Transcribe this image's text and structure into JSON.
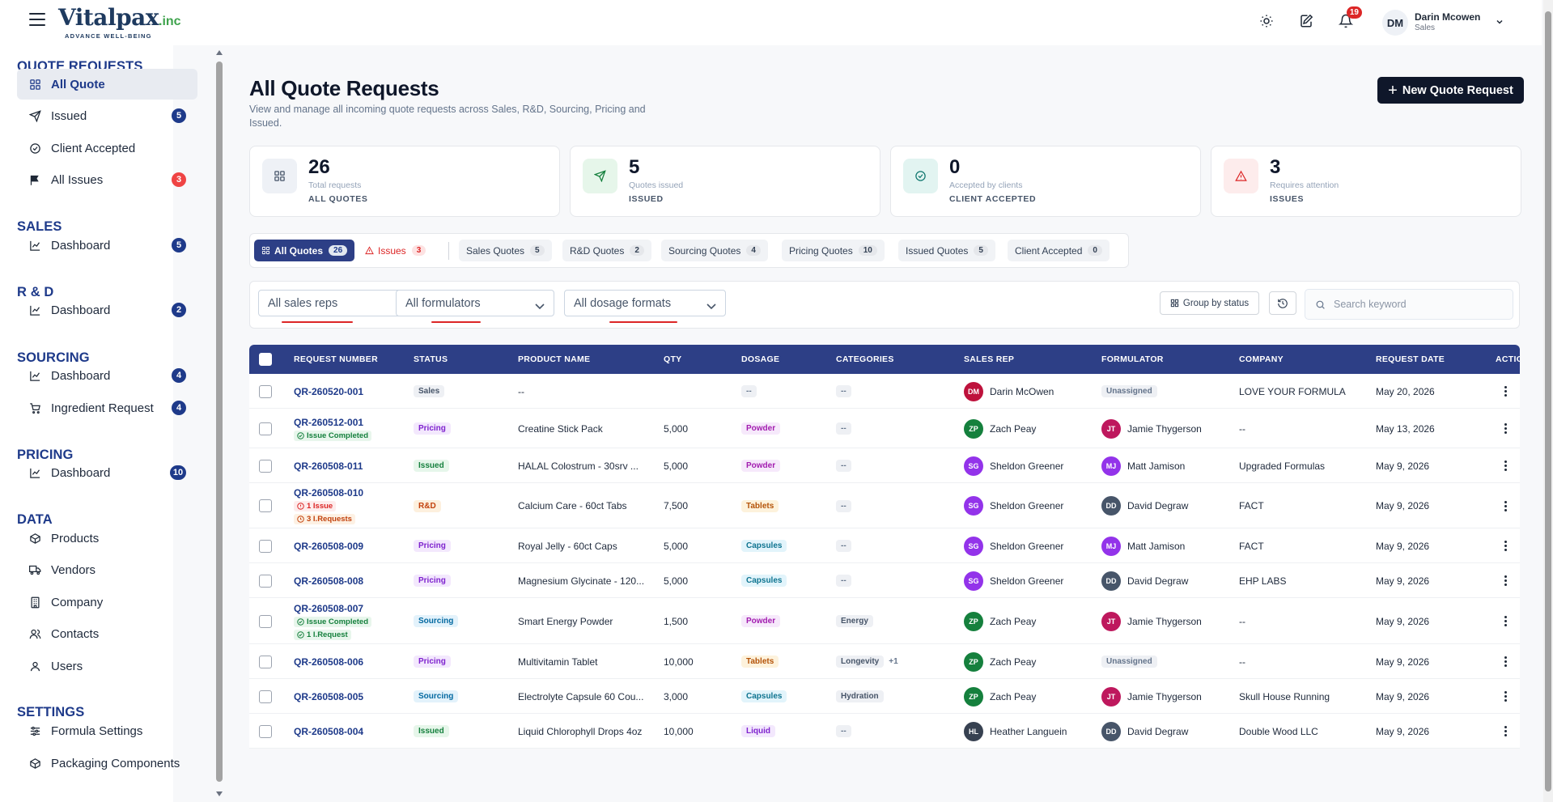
{
  "brand": {
    "name": "Vitalpax",
    "suffix": ".inc",
    "tagline": "ADVANCE WELL-BEING"
  },
  "header": {
    "notifications_count": "19",
    "user": {
      "initials": "DM",
      "name": "Darin Mcowen",
      "role": "Sales"
    }
  },
  "sidebar": {
    "sections": [
      {
        "title": "QUOTE REQUESTS"
      },
      {
        "title": "SALES"
      },
      {
        "title": "R & D"
      },
      {
        "title": "SOURCING"
      },
      {
        "title": "PRICING"
      },
      {
        "title": "DATA"
      },
      {
        "title": "SETTINGS"
      }
    ],
    "items": [
      {
        "label": "All Quote",
        "icon": "grid-icon",
        "active": true
      },
      {
        "label": "Issued",
        "icon": "send-icon",
        "badge": "5"
      },
      {
        "label": "Client Accepted",
        "icon": "check-circle-icon"
      },
      {
        "label": "All Issues",
        "icon": "flag-icon",
        "badge": "3",
        "badge_color": "#ef4444"
      },
      {
        "label": "Dashboard",
        "icon": "chart-icon",
        "badge": "5"
      },
      {
        "label": "Dashboard",
        "icon": "chart-icon",
        "badge": "2"
      },
      {
        "label": "Dashboard",
        "icon": "chart-icon",
        "badge": "4"
      },
      {
        "label": "Ingredient Request",
        "icon": "cart-icon",
        "badge": "4"
      },
      {
        "label": "Dashboard",
        "icon": "chart-icon",
        "badge": "10"
      },
      {
        "label": "Products",
        "icon": "box-icon"
      },
      {
        "label": "Vendors",
        "icon": "truck-icon"
      },
      {
        "label": "Company",
        "icon": "building-icon"
      },
      {
        "label": "Contacts",
        "icon": "users-icon"
      },
      {
        "label": "Users",
        "icon": "user-icon"
      },
      {
        "label": "Formula Settings",
        "icon": "sliders-icon"
      },
      {
        "label": "Packaging Components",
        "icon": "box-icon"
      }
    ]
  },
  "page": {
    "title": "All Quote Requests",
    "subtitle": "View and manage all incoming quote requests across Sales, R&D, Sourcing, Pricing and Issued.",
    "new_button": "New Quote Request"
  },
  "stats": [
    {
      "value": "26",
      "label": "Total requests",
      "caption": "ALL QUOTES",
      "icon": "grid-icon",
      "color": "#eef1f6"
    },
    {
      "value": "5",
      "label": "Quotes issued",
      "caption": "ISSUED",
      "icon": "send-icon",
      "color": "#e6f6ea"
    },
    {
      "value": "0",
      "label": "Accepted by clients",
      "caption": "CLIENT ACCEPTED",
      "icon": "check-circle-icon",
      "color": "#e2f4f1"
    },
    {
      "value": "3",
      "label": "Requires attention",
      "caption": "ISSUES",
      "icon": "alert-icon",
      "color": "#fdecec"
    }
  ],
  "tabs": [
    {
      "label": "All Quotes",
      "count": "26"
    },
    {
      "label": "Issues",
      "count": "3"
    },
    {
      "label": "Sales Quotes",
      "count": "5"
    },
    {
      "label": "R&D Quotes",
      "count": "2"
    },
    {
      "label": "Sourcing Quotes",
      "count": "4"
    },
    {
      "label": "Pricing Quotes",
      "count": "10"
    },
    {
      "label": "Issued Quotes",
      "count": "5"
    },
    {
      "label": "Client Accepted",
      "count": "0"
    }
  ],
  "filters": {
    "sales_reps": "All sales reps",
    "formulators": "All formulators",
    "dosage_formats": "All dosage formats",
    "group_by": "Group by status",
    "search_placeholder": "Search keyword"
  },
  "table": {
    "columns": [
      "REQUEST NUMBER",
      "STATUS",
      "PRODUCT NAME",
      "QTY",
      "DOSAGE",
      "CATEGORIES",
      "SALES REP",
      "FORMULATOR",
      "COMPANY",
      "REQUEST DATE",
      "ACTIONS"
    ],
    "rows": [
      {
        "req": "QR-260520-001",
        "tags": [],
        "status": "Sales",
        "product": "--",
        "qty": "",
        "dosage": "--",
        "categories": [
          "--"
        ],
        "more": "",
        "rep_i": "DM",
        "rep": "Darin McOwen",
        "form_i": "",
        "form": "Unassigned",
        "company": "LOVE YOUR FORMULA",
        "date": "May 20, 2026"
      },
      {
        "req": "QR-260512-001",
        "tags": [
          {
            "kind": "done",
            "text": "Issue Completed"
          }
        ],
        "status": "Pricing",
        "product": "Creatine Stick Pack",
        "qty": "5,000",
        "dosage": "Powder",
        "categories": [
          "--"
        ],
        "more": "",
        "rep_i": "ZP",
        "rep": "Zach Peay",
        "form_i": "JT",
        "form": "Jamie Thygerson",
        "company": "--",
        "date": "May 13, 2026"
      },
      {
        "req": "QR-260508-011",
        "tags": [],
        "status": "Issued",
        "product": "HALAL Colostrum - 30srv ...",
        "qty": "5,000",
        "dosage": "Powder",
        "categories": [
          "--"
        ],
        "more": "",
        "rep_i": "SG",
        "rep": "Sheldon Greener",
        "form_i": "MJ",
        "form": "Matt Jamison",
        "company": "Upgraded Formulas",
        "date": "May 9, 2026"
      },
      {
        "req": "QR-260508-010",
        "tags": [
          {
            "kind": "issue",
            "text": "1 Issue"
          },
          {
            "kind": "req",
            "text": "3 I.Requests"
          }
        ],
        "status": "R&D",
        "product": "Calcium Care - 60ct Tabs",
        "qty": "7,500",
        "dosage": "Tablets",
        "categories": [
          "--"
        ],
        "more": "",
        "rep_i": "SG",
        "rep": "Sheldon Greener",
        "form_i": "DD",
        "form": "David Degraw",
        "company": "FACT",
        "date": "May 9, 2026"
      },
      {
        "req": "QR-260508-009",
        "tags": [],
        "status": "Pricing",
        "product": "Royal Jelly - 60ct Caps",
        "qty": "5,000",
        "dosage": "Capsules",
        "categories": [
          "--"
        ],
        "more": "",
        "rep_i": "SG",
        "rep": "Sheldon Greener",
        "form_i": "MJ",
        "form": "Matt Jamison",
        "company": "FACT",
        "date": "May 9, 2026"
      },
      {
        "req": "QR-260508-008",
        "tags": [],
        "status": "Pricing",
        "product": "Magnesium Glycinate - 120...",
        "qty": "5,000",
        "dosage": "Capsules",
        "categories": [
          "--"
        ],
        "more": "",
        "rep_i": "SG",
        "rep": "Sheldon Greener",
        "form_i": "DD",
        "form": "David Degraw",
        "company": "EHP LABS",
        "date": "May 9, 2026"
      },
      {
        "req": "QR-260508-007",
        "tags": [
          {
            "kind": "done",
            "text": "Issue Completed"
          },
          {
            "kind": "done",
            "text": "1 I.Request"
          }
        ],
        "status": "Sourcing",
        "product": "Smart Energy Powder",
        "qty": "1,500",
        "dosage": "Powder",
        "categories": [
          "Energy"
        ],
        "more": "",
        "rep_i": "ZP",
        "rep": "Zach Peay",
        "form_i": "JT",
        "form": "Jamie Thygerson",
        "company": "--",
        "date": "May 9, 2026"
      },
      {
        "req": "QR-260508-006",
        "tags": [],
        "status": "Pricing",
        "product": "Multivitamin Tablet",
        "qty": "10,000",
        "dosage": "Tablets",
        "categories": [
          "Longevity"
        ],
        "more": "+1",
        "rep_i": "ZP",
        "rep": "Zach Peay",
        "form_i": "",
        "form": "Unassigned",
        "company": "--",
        "date": "May 9, 2026"
      },
      {
        "req": "QR-260508-005",
        "tags": [],
        "status": "Sourcing",
        "product": "Electrolyte Capsule 60 Cou...",
        "qty": "3,000",
        "dosage": "Capsules",
        "categories": [
          "Hydration"
        ],
        "more": "",
        "rep_i": "ZP",
        "rep": "Zach Peay",
        "form_i": "JT",
        "form": "Jamie Thygerson",
        "company": "Skull House Running",
        "date": "May 9, 2026"
      },
      {
        "req": "QR-260508-004",
        "tags": [],
        "status": "Issued",
        "product": "Liquid Chlorophyll Drops 4oz",
        "qty": "10,000",
        "dosage": "Liquid",
        "categories": [
          "--"
        ],
        "more": "",
        "rep_i": "HL",
        "rep": "Heather Languein",
        "form_i": "DD",
        "form": "David Degraw",
        "company": "Double Wood LLC",
        "date": "May 9, 2026"
      }
    ]
  }
}
